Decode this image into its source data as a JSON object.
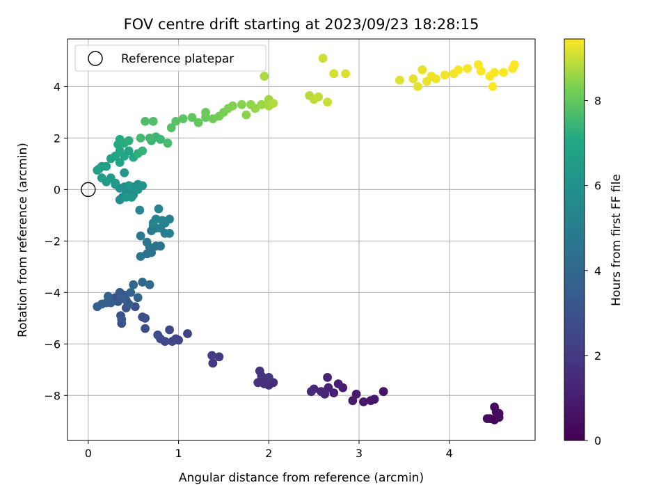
{
  "chart_data": {
    "type": "scatter",
    "title": "FOV centre drift starting at 2023/09/23 18:28:15",
    "xlabel": "Angular distance from reference (arcmin)",
    "ylabel": "Rotation from reference (arcmin)",
    "xlim": [
      -0.23,
      4.95
    ],
    "ylim": [
      -9.75,
      5.85
    ],
    "xticks": [
      0,
      1,
      2,
      3,
      4
    ],
    "yticks": [
      -8,
      -6,
      -4,
      -2,
      0,
      2,
      4
    ],
    "grid": true,
    "legend": {
      "position": "top-left",
      "entries": [
        "Reference platepar"
      ]
    },
    "reference_point": {
      "x": 0,
      "y": 0,
      "marker": "open-circle"
    },
    "colorbar": {
      "label": "Hours from first FF file",
      "range": [
        0,
        9.45
      ],
      "ticks": [
        0,
        2,
        4,
        6,
        8
      ],
      "colormap": "viridis"
    },
    "series": [
      {
        "points": [
          [
            4.45,
            -8.9,
            0.1
          ],
          [
            4.5,
            -8.95,
            0.15
          ],
          [
            4.55,
            -8.85,
            0.2
          ],
          [
            4.52,
            -8.65,
            0.25
          ],
          [
            4.5,
            -8.45,
            0.3
          ],
          [
            4.42,
            -8.9,
            0.35
          ],
          [
            4.55,
            -8.7,
            0.4
          ],
          [
            3.27,
            -7.85,
            0.7
          ],
          [
            3.17,
            -8.15,
            0.75
          ],
          [
            3.13,
            -8.2,
            0.8
          ],
          [
            3.05,
            -8.25,
            0.85
          ],
          [
            2.97,
            -7.95,
            0.9
          ],
          [
            2.93,
            -8.2,
            0.95
          ],
          [
            2.82,
            -7.7,
            1.0
          ],
          [
            2.77,
            -7.55,
            1.05
          ],
          [
            2.72,
            -7.9,
            1.1
          ],
          [
            2.66,
            -7.7,
            1.15
          ],
          [
            2.65,
            -7.3,
            1.2
          ],
          [
            2.62,
            -7.95,
            1.25
          ],
          [
            2.58,
            -7.85,
            1.3
          ],
          [
            2.5,
            -7.75,
            1.35
          ],
          [
            2.47,
            -7.85,
            1.4
          ],
          [
            2.05,
            -7.5,
            1.5
          ],
          [
            2.0,
            -7.6,
            1.55
          ],
          [
            1.97,
            -7.4,
            1.6
          ],
          [
            1.95,
            -7.55,
            1.65
          ],
          [
            1.92,
            -7.25,
            1.7
          ],
          [
            1.88,
            -7.5,
            1.75
          ],
          [
            1.9,
            -7.05,
            1.8
          ],
          [
            2.0,
            -7.3,
            1.85
          ],
          [
            1.45,
            -6.5,
            2.0
          ],
          [
            1.38,
            -6.75,
            2.05
          ],
          [
            1.37,
            -6.45,
            2.1
          ],
          [
            1.1,
            -5.6,
            2.3
          ],
          [
            1.0,
            -5.85,
            2.35
          ],
          [
            0.97,
            -5.8,
            2.4
          ],
          [
            0.93,
            -5.9,
            2.45
          ],
          [
            0.9,
            -5.45,
            2.5
          ],
          [
            0.85,
            -5.9,
            2.55
          ],
          [
            0.8,
            -5.8,
            2.6
          ],
          [
            0.77,
            -5.65,
            2.65
          ],
          [
            0.63,
            -5.4,
            2.8
          ],
          [
            0.63,
            -5.0,
            2.85
          ],
          [
            0.6,
            -4.95,
            2.9
          ],
          [
            0.52,
            -4.55,
            2.95
          ],
          [
            0.42,
            -4.6,
            3.0
          ],
          [
            0.37,
            -5.05,
            3.05
          ],
          [
            0.37,
            -5.2,
            3.1
          ],
          [
            0.36,
            -4.9,
            3.15
          ],
          [
            0.3,
            -4.2,
            3.2
          ],
          [
            0.33,
            -4.35,
            3.25
          ],
          [
            0.35,
            -4.0,
            3.3
          ],
          [
            0.4,
            -4.1,
            3.35
          ],
          [
            0.42,
            -4.3,
            3.4
          ],
          [
            0.45,
            -4.45,
            3.45
          ],
          [
            0.37,
            -4.15,
            3.5
          ],
          [
            0.25,
            -4.4,
            3.55
          ],
          [
            0.2,
            -4.4,
            3.6
          ],
          [
            0.15,
            -4.45,
            3.65
          ],
          [
            0.1,
            -4.55,
            3.7
          ],
          [
            0.22,
            -4.15,
            3.75
          ],
          [
            0.47,
            -4.0,
            3.8
          ],
          [
            0.55,
            -4.2,
            3.85
          ],
          [
            0.5,
            -3.7,
            3.9
          ],
          [
            0.6,
            -3.6,
            3.95
          ],
          [
            0.68,
            -3.7,
            4.0
          ],
          [
            0.65,
            -2.5,
            4.4
          ],
          [
            0.7,
            -2.45,
            4.45
          ],
          [
            0.68,
            -2.25,
            4.5
          ],
          [
            0.75,
            -2.2,
            4.55
          ],
          [
            0.8,
            -2.2,
            4.6
          ],
          [
            0.58,
            -2.6,
            4.65
          ],
          [
            0.65,
            -2.05,
            4.7
          ],
          [
            0.58,
            -1.8,
            4.75
          ],
          [
            0.7,
            -1.6,
            4.8
          ],
          [
            0.72,
            -1.4,
            4.85
          ],
          [
            0.75,
            -1.5,
            4.9
          ],
          [
            0.8,
            -1.5,
            4.95
          ],
          [
            0.85,
            -1.7,
            5.0
          ],
          [
            0.9,
            -1.7,
            5.05
          ],
          [
            0.85,
            -1.3,
            5.1
          ],
          [
            0.9,
            -1.15,
            5.15
          ],
          [
            0.82,
            -1.2,
            5.2
          ],
          [
            0.75,
            -1.15,
            5.25
          ],
          [
            0.72,
            -1.3,
            5.3
          ],
          [
            0.78,
            -0.75,
            5.35
          ],
          [
            0.57,
            -0.8,
            5.4
          ],
          [
            0.5,
            -0.2,
            5.55
          ],
          [
            0.45,
            0.0,
            5.6
          ],
          [
            0.42,
            -0.15,
            5.65
          ],
          [
            0.38,
            -0.3,
            5.7
          ],
          [
            0.35,
            -0.4,
            5.75
          ],
          [
            0.4,
            0.1,
            5.8
          ],
          [
            0.35,
            0.05,
            5.85
          ],
          [
            0.3,
            0.2,
            5.9
          ],
          [
            0.55,
            0.2,
            5.95
          ],
          [
            0.55,
            0.0,
            6.0
          ],
          [
            0.5,
            0.1,
            6.05
          ],
          [
            0.45,
            0.15,
            6.1
          ],
          [
            0.6,
            0.15,
            6.15
          ],
          [
            0.42,
            -0.3,
            6.2
          ],
          [
            0.48,
            -0.3,
            6.25
          ],
          [
            0.4,
            0.65,
            6.3
          ],
          [
            0.3,
            0.25,
            6.35
          ],
          [
            0.25,
            0.45,
            6.4
          ],
          [
            0.2,
            0.3,
            6.45
          ],
          [
            0.15,
            0.45,
            6.5
          ],
          [
            0.1,
            0.75,
            6.55
          ],
          [
            0.15,
            0.9,
            6.6
          ],
          [
            0.2,
            0.9,
            6.65
          ],
          [
            0.12,
            0.8,
            6.7
          ],
          [
            0.25,
            1.2,
            6.75
          ],
          [
            0.3,
            1.3,
            6.8
          ],
          [
            0.35,
            1.05,
            6.85
          ],
          [
            0.4,
            1.3,
            6.9
          ],
          [
            0.45,
            1.5,
            6.95
          ],
          [
            0.5,
            1.25,
            7.0
          ],
          [
            0.35,
            1.5,
            7.05
          ],
          [
            0.33,
            1.75,
            7.1
          ],
          [
            0.35,
            1.95,
            7.15
          ],
          [
            0.4,
            1.8,
            7.2
          ],
          [
            0.45,
            1.9,
            7.25
          ],
          [
            0.55,
            1.4,
            7.3
          ],
          [
            0.6,
            1.5,
            7.35
          ],
          [
            0.7,
            1.9,
            7.4
          ],
          [
            0.75,
            2.05,
            7.45
          ],
          [
            0.8,
            1.95,
            7.5
          ],
          [
            0.68,
            2.0,
            7.55
          ],
          [
            0.58,
            2.0,
            7.6
          ],
          [
            0.88,
            1.8,
            7.65
          ],
          [
            0.63,
            2.65,
            7.7
          ],
          [
            0.72,
            2.65,
            7.75
          ],
          [
            0.92,
            2.4,
            7.8
          ],
          [
            0.97,
            2.65,
            7.85
          ],
          [
            1.05,
            2.75,
            7.9
          ],
          [
            1.15,
            2.8,
            7.95
          ],
          [
            1.22,
            2.6,
            8.0
          ],
          [
            1.3,
            2.8,
            8.05
          ],
          [
            1.3,
            3.0,
            8.1
          ],
          [
            1.38,
            2.75,
            8.15
          ],
          [
            1.45,
            2.85,
            8.2
          ],
          [
            1.5,
            3.0,
            8.25
          ],
          [
            1.55,
            3.15,
            8.3
          ],
          [
            1.6,
            3.25,
            8.35
          ],
          [
            1.7,
            3.3,
            8.4
          ],
          [
            1.75,
            2.9,
            8.45
          ],
          [
            1.8,
            3.3,
            8.5
          ],
          [
            1.85,
            3.15,
            8.55
          ],
          [
            1.92,
            3.3,
            8.6
          ],
          [
            2.0,
            3.5,
            8.65
          ],
          [
            2.0,
            3.25,
            8.7
          ],
          [
            1.95,
            4.4,
            8.75
          ],
          [
            2.05,
            3.35,
            8.8
          ],
          [
            2.45,
            3.65,
            8.85
          ],
          [
            2.5,
            3.5,
            8.9
          ],
          [
            2.55,
            3.6,
            8.95
          ],
          [
            2.65,
            3.4,
            9.0
          ],
          [
            2.6,
            5.1,
            9.05
          ],
          [
            2.72,
            4.5,
            9.1
          ],
          [
            2.85,
            4.5,
            9.15
          ],
          [
            3.45,
            4.25,
            9.2
          ],
          [
            3.6,
            4.3,
            9.22
          ],
          [
            3.65,
            4.0,
            9.24
          ],
          [
            3.7,
            4.65,
            9.26
          ],
          [
            3.75,
            4.2,
            9.28
          ],
          [
            3.8,
            4.4,
            9.3
          ],
          [
            3.85,
            4.3,
            9.32
          ],
          [
            3.95,
            4.45,
            9.34
          ],
          [
            4.05,
            4.5,
            9.36
          ],
          [
            4.1,
            4.65,
            9.38
          ],
          [
            4.2,
            4.7,
            9.4
          ],
          [
            4.32,
            4.85,
            9.42
          ],
          [
            4.35,
            4.6,
            9.43
          ],
          [
            4.45,
            4.4,
            9.44
          ],
          [
            4.48,
            4.0,
            9.44
          ],
          [
            4.5,
            4.55,
            9.45
          ],
          [
            4.6,
            4.55,
            9.45
          ],
          [
            4.7,
            4.7,
            9.45
          ],
          [
            4.72,
            4.85,
            9.45
          ]
        ]
      }
    ]
  }
}
